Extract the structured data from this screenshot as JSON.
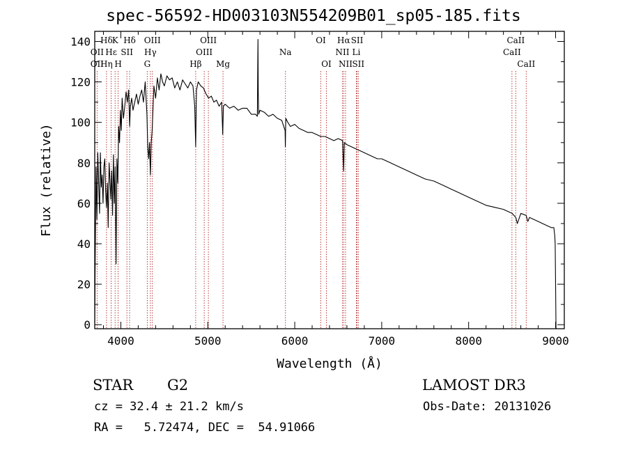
{
  "title": "spec-56592-HD003103N554209B01_sp05-185.fits",
  "info": {
    "object_class": "STAR",
    "subclass": "G2",
    "survey": "LAMOST DR3",
    "redshift": "cz = 32.4 ± 21.2 km/s",
    "obs_date": "Obs-Date: 20131026",
    "coords": "RA =   5.72474, DEC =  54.91066"
  },
  "colors": {
    "line_marker": "#b22222",
    "spectrum": "#000000"
  },
  "chart_data": {
    "type": "line",
    "title": "spec-56592-HD003103N554209B01_sp05-185.fits",
    "xlabel": "Wavelength (Å)",
    "ylabel": "Flux (relative)",
    "xlim": [
      3700,
      9100
    ],
    "ylim": [
      -2,
      145
    ],
    "xticks": [
      4000,
      5000,
      6000,
      7000,
      8000,
      9000
    ],
    "yticks": [
      0,
      20,
      40,
      60,
      80,
      100,
      120,
      140
    ],
    "grid": false,
    "series": [
      {
        "name": "spectrum",
        "x": [
          3700,
          3705,
          3715,
          3725,
          3735,
          3745,
          3755,
          3765,
          3775,
          3785,
          3795,
          3805,
          3815,
          3825,
          3835,
          3845,
          3855,
          3865,
          3875,
          3885,
          3895,
          3905,
          3915,
          3925,
          3935,
          3945,
          3955,
          3965,
          3975,
          3985,
          3995,
          4005,
          4015,
          4030,
          4045,
          4060,
          4075,
          4090,
          4101,
          4110,
          4125,
          4140,
          4160,
          4180,
          4200,
          4220,
          4240,
          4260,
          4280,
          4300,
          4310,
          4320,
          4330,
          4340,
          4350,
          4360,
          4380,
          4400,
          4420,
          4440,
          4460,
          4480,
          4500,
          4530,
          4560,
          4590,
          4620,
          4650,
          4680,
          4710,
          4740,
          4770,
          4800,
          4830,
          4850,
          4861,
          4870,
          4890,
          4920,
          4950,
          4980,
          5010,
          5040,
          5070,
          5100,
          5130,
          5160,
          5172,
          5180,
          5200,
          5250,
          5300,
          5350,
          5400,
          5450,
          5500,
          5550,
          5570,
          5577,
          5580,
          5585,
          5600,
          5650,
          5700,
          5750,
          5800,
          5850,
          5889,
          5892,
          5895,
          5898,
          5920,
          5950,
          6000,
          6050,
          6100,
          6150,
          6200,
          6250,
          6300,
          6350,
          6400,
          6450,
          6500,
          6550,
          6563,
          6570,
          6600,
          6650,
          6700,
          6750,
          6800,
          6850,
          6900,
          6950,
          7000,
          7100,
          7200,
          7300,
          7400,
          7500,
          7600,
          7700,
          7800,
          7900,
          8000,
          8100,
          8200,
          8300,
          8400,
          8500,
          8542,
          8560,
          8600,
          8662,
          8680,
          8700,
          8750,
          8800,
          8850,
          8900,
          8950,
          8980,
          8990,
          8995,
          9000,
          9005
        ],
        "y": [
          1,
          30,
          78,
          52,
          85,
          70,
          55,
          85,
          68,
          74,
          60,
          78,
          82,
          66,
          58,
          70,
          48,
          80,
          72,
          62,
          76,
          54,
          84,
          60,
          78,
          30,
          82,
          70,
          98,
          90,
          106,
          96,
          112,
          102,
          108,
          115,
          110,
          116,
          98,
          108,
          112,
          106,
          110,
          114,
          109,
          113,
          116,
          110,
          120,
          104,
          88,
          82,
          90,
          74,
          90,
          96,
          118,
          112,
          122,
          116,
          124,
          120,
          118,
          123,
          121,
          122,
          117,
          120,
          116,
          121,
          119,
          117,
          120,
          118,
          108,
          88,
          116,
          120,
          118,
          117,
          114,
          112,
          113,
          110,
          111,
          108,
          110,
          94,
          108,
          109,
          107,
          108,
          106,
          107,
          107,
          104,
          104,
          103,
          141,
          115,
          104,
          106,
          105,
          103,
          104,
          102,
          101,
          96,
          88,
          98,
          102,
          100,
          98,
          99,
          97,
          96,
          95,
          95,
          94,
          93,
          93,
          92,
          91,
          92,
          91,
          76,
          90,
          89,
          88,
          87,
          86,
          85,
          84,
          83,
          82,
          82,
          80,
          78,
          76,
          74,
          72,
          71,
          69,
          67,
          65,
          63,
          61,
          59,
          58,
          57,
          55,
          53,
          50,
          55,
          54,
          51,
          53,
          52,
          51,
          50,
          49,
          48,
          48,
          44,
          40,
          20,
          -3
        ]
      }
    ],
    "annotations": [
      {
        "label": "Hδ",
        "x": 3835,
        "row": 1
      },
      {
        "label": "OII",
        "x": 3727,
        "row": 2
      },
      {
        "label": "OII",
        "x": 3727,
        "row": 3
      },
      {
        "label": "Hε",
        "x": 3889,
        "row": 2
      },
      {
        "label": "Hη",
        "x": 3835,
        "row": 3
      },
      {
        "label": "K",
        "x": 3934,
        "row": 1
      },
      {
        "label": "H",
        "x": 3969,
        "row": 3
      },
      {
        "label": "Hδ",
        "x": 4101,
        "row": 1
      },
      {
        "label": "SII",
        "x": 4070,
        "row": 2
      },
      {
        "label": "OIII",
        "x": 4363,
        "row": 1
      },
      {
        "label": "Hγ",
        "x": 4340,
        "row": 2
      },
      {
        "label": "G",
        "x": 4304,
        "row": 3
      },
      {
        "label": "Hβ",
        "x": 4861,
        "row": 3
      },
      {
        "label": "OIII",
        "x": 5007,
        "row": 1
      },
      {
        "label": "OIII",
        "x": 4959,
        "row": 2
      },
      {
        "label": "Mg",
        "x": 5175,
        "row": 3
      },
      {
        "label": "Na",
        "x": 5893,
        "row": 2
      },
      {
        "label": "OI",
        "x": 6300,
        "row": 1
      },
      {
        "label": "OI",
        "x": 6364,
        "row": 3
      },
      {
        "label": "Hα",
        "x": 6563,
        "row": 1
      },
      {
        "label": "NII",
        "x": 6548,
        "row": 2
      },
      {
        "label": "NII",
        "x": 6584,
        "row": 3
      },
      {
        "label": "SII",
        "x": 6717,
        "row": 1
      },
      {
        "label": "Li",
        "x": 6708,
        "row": 2
      },
      {
        "label": "SII",
        "x": 6731,
        "row": 3
      },
      {
        "label": "CaII",
        "x": 8542,
        "row": 1
      },
      {
        "label": "CaII",
        "x": 8498,
        "row": 2
      },
      {
        "label": "CaII",
        "x": 8662,
        "row": 3
      }
    ]
  }
}
